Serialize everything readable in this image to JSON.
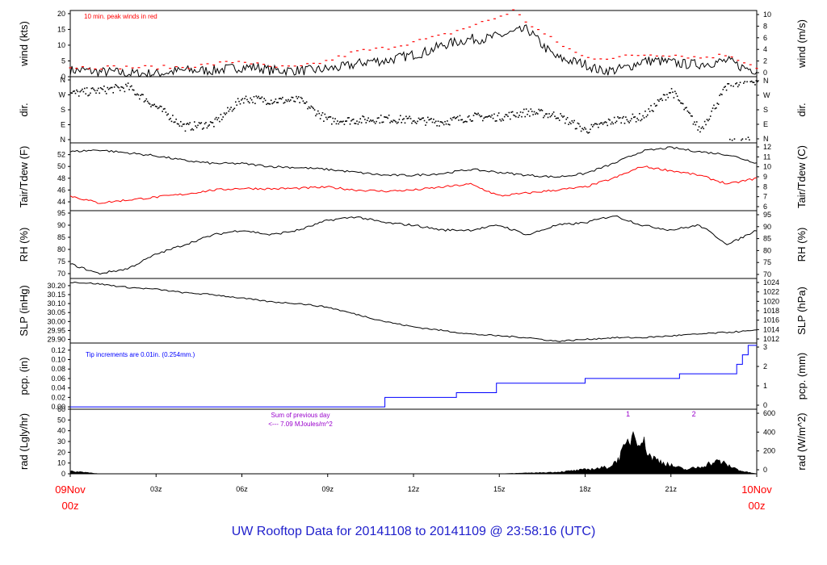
{
  "title": "UW Rooftop Data for 20141108  to  20141109 @ 23:58:16  (UTC)",
  "colors": {
    "trace": "#000000",
    "red": "#ff0000",
    "blue": "#0000ff",
    "purple": "#9900cc",
    "title": "#1f1fcc"
  },
  "chart_data": {
    "type": "line",
    "x_axis": {
      "ticks": [
        "03z",
        "06z",
        "09z",
        "12z",
        "15z",
        "18z",
        "21z"
      ],
      "start_day": "09Nov",
      "start_hour": "00z",
      "end_day": "10Nov",
      "end_hour": "00z"
    },
    "panels": [
      {
        "id": "wind",
        "ylabel_left": "wind (kts)",
        "ylabel_right": "wind (m/s)",
        "left_ticks": [
          "0",
          "5",
          "10",
          "15",
          "20"
        ],
        "ylim_left": [
          0,
          21
        ],
        "right_ticks": [
          "0",
          "2",
          "4",
          "6",
          "8",
          "10"
        ],
        "annotation": "10 min. peak winds in red",
        "series": [
          {
            "name": "wind speed",
            "x": [
              0,
              0.5,
              1,
              1.5,
              2,
              2.5,
              3,
              3.5,
              4,
              4.5,
              5,
              5.5,
              6,
              6.5,
              7,
              7.5,
              8,
              8.5,
              9,
              9.5,
              10,
              10.5,
              11,
              11.5,
              12,
              12.5,
              13,
              13.5,
              14,
              14.5,
              15,
              15.5,
              16,
              16.5,
              17,
              17.5,
              18,
              18.5,
              19,
              19.5,
              20,
              20.5,
              21,
              21.5,
              22,
              22.5,
              23,
              23.5,
              24
            ],
            "y": [
              2,
              2,
              1.5,
              1.5,
              1,
              1,
              1,
              1.5,
              2,
              2,
              2,
              2.5,
              3,
              3,
              2,
              2,
              2,
              2,
              2.5,
              3,
              4,
              5,
              5,
              6,
              7,
              8,
              10,
              11,
              12,
              12,
              13,
              14,
              15,
              10,
              6,
              5,
              4,
              2,
              2,
              3,
              5,
              5,
              4.5,
              4,
              4,
              4.5,
              5,
              3,
              2
            ]
          },
          {
            "name": "10 min. peak winds",
            "x": [
              0,
              1,
              2,
              3,
              4,
              5,
              6,
              7,
              8,
              9,
              10,
              11,
              12,
              13,
              14,
              15,
              15.5,
              16,
              17,
              18,
              19,
              20,
              21,
              22,
              23,
              24
            ],
            "y": [
              3,
              3,
              3,
              3,
              3,
              4,
              5,
              3,
              3,
              5,
              8,
              9,
              11,
              13,
              16,
              19,
              21,
              17,
              11,
              6,
              6,
              7,
              7,
              6,
              7,
              3
            ]
          }
        ]
      },
      {
        "id": "dir",
        "ylabel_left": "dir.",
        "ylabel_right": "dir.",
        "left_ticks": [
          "N",
          "E",
          "S",
          "W",
          "N"
        ],
        "right_ticks": [
          "N",
          "E",
          "S",
          "W",
          "N"
        ],
        "ylim": [
          0,
          360
        ],
        "series": [
          {
            "name": "wind direction",
            "x": [
              0,
              1,
              2,
              3,
              4,
              5,
              6,
              7,
              8,
              9,
              10,
              11,
              12,
              13,
              14,
              15,
              16,
              17,
              18,
              19,
              20,
              21,
              22,
              23,
              24
            ],
            "y": [
              280,
              300,
              320,
              200,
              80,
              100,
              250,
              240,
              240,
              120,
              120,
              130,
              120,
              110,
              140,
              140,
              170,
              150,
              60,
              120,
              140,
              300,
              60,
              340,
              360
            ]
          }
        ]
      },
      {
        "id": "temp",
        "ylabel_left": "Tair/Tdew (F)",
        "ylabel_right": "Tair/Tdew (C)",
        "left_ticks": [
          "44",
          "46",
          "48",
          "50",
          "52"
        ],
        "ylim_left": [
          42.5,
          54
        ],
        "right_ticks": [
          "6",
          "7",
          "8",
          "9",
          "10",
          "11",
          "12"
        ],
        "series": [
          {
            "name": "air temperature",
            "x": [
              0,
              1,
              2,
              3,
              4,
              5,
              6,
              7,
              8,
              9,
              10,
              11,
              12,
              13,
              14,
              15,
              16,
              17,
              18,
              19,
              20,
              21,
              22,
              23,
              24
            ],
            "y": [
              52.5,
              52.8,
              52.3,
              51.8,
              51,
              50.5,
              50.5,
              50,
              49.8,
              49.5,
              49,
              48.5,
              48.5,
              48.8,
              49.5,
              49,
              48.5,
              48.2,
              48.8,
              50.5,
              52.6,
              53.2,
              52.5,
              52,
              50.6
            ]
          },
          {
            "name": "dew point",
            "x": [
              0,
              1,
              2,
              3,
              4,
              5,
              6,
              7,
              8,
              9,
              10,
              11,
              12,
              13,
              14,
              15,
              16,
              17,
              18,
              19,
              20,
              21,
              22,
              23,
              24
            ],
            "y": [
              45,
              43.8,
              44.3,
              44.8,
              45.3,
              46,
              46.3,
              46.2,
              46.3,
              46.5,
              46,
              45.8,
              46,
              46.5,
              47,
              45,
              45.5,
              46,
              46.5,
              48,
              50,
              49.3,
              48.5,
              47,
              48
            ]
          }
        ]
      },
      {
        "id": "rh",
        "ylabel_left": "RH (%)",
        "ylabel_right": "RH (%)",
        "left_ticks": [
          "70",
          "75",
          "80",
          "85",
          "90",
          "95"
        ],
        "ylim": [
          68,
          96
        ],
        "right_ticks": [
          "70",
          "75",
          "80",
          "85",
          "90",
          "95"
        ],
        "series": [
          {
            "name": "relative humidity",
            "x": [
              0,
              1,
              2,
              3,
              4,
              5,
              6,
              7,
              8,
              9,
              10,
              11,
              12,
              13,
              14,
              15,
              16,
              17,
              18,
              19,
              20,
              21,
              22,
              23,
              24
            ],
            "y": [
              74,
              70,
              72,
              78,
              82,
              86,
              88,
              86,
              88,
              92,
              93.5,
              91,
              90,
              88,
              88,
              90,
              86,
              90,
              91,
              94,
              90,
              88,
              90,
              82,
              88
            ]
          }
        ]
      },
      {
        "id": "slp",
        "ylabel_left": "SLP (inHg)",
        "ylabel_right": "SLP (hPa)",
        "left_ticks": [
          "29.90",
          "29.95",
          "30.00",
          "30.05",
          "30.10",
          "30.15",
          "30.20"
        ],
        "ylim_left": [
          29.88,
          30.24
        ],
        "right_ticks": [
          "1012",
          "1014",
          "1016",
          "1018",
          "1020",
          "1022",
          "1024"
        ],
        "series": [
          {
            "name": "sea level pressure",
            "x": [
              0,
              1,
              2,
              3,
              4,
              5,
              6,
              7,
              8,
              9,
              10,
              11,
              12,
              13,
              14,
              15,
              16,
              17,
              18,
              19,
              20,
              21,
              22,
              23,
              24
            ],
            "y": [
              30.22,
              30.21,
              30.19,
              30.18,
              30.16,
              30.15,
              30.13,
              30.11,
              30.1,
              30.08,
              30.04,
              30.0,
              29.97,
              29.95,
              29.93,
              29.92,
              29.91,
              29.89,
              29.9,
              29.91,
              29.91,
              29.92,
              29.93,
              29.94,
              29.95
            ]
          }
        ]
      },
      {
        "id": "pcp",
        "ylabel_left": "pcp. (in)",
        "ylabel_right": "pcp. (mm)",
        "left_ticks": [
          "0.00",
          "0.02",
          "0.04",
          "0.06",
          "0.08",
          "0.10",
          "0.12"
        ],
        "ylim": [
          -0.005,
          0.135
        ],
        "right_ticks": [
          "0",
          "1",
          "2",
          "3"
        ],
        "annotation": "Tip increments are 0.01in. (0.254mm.)",
        "series": [
          {
            "name": "accumulated precipitation",
            "step": true,
            "x": [
              0,
              10.8,
              11.0,
              12.8,
              13.5,
              14.9,
              18.0,
              21.3,
              23.3,
              23.5,
              23.7,
              24
            ],
            "y": [
              0,
              0,
              0.02,
              0.02,
              0.03,
              0.05,
              0.06,
              0.07,
              0.09,
              0.11,
              0.13,
              0.13
            ]
          }
        ]
      },
      {
        "id": "rad",
        "ylabel_left": "rad (Lgly/hr)",
        "ylabel_right": "rad (W/m^2)",
        "left_ticks": [
          "0",
          "10",
          "20",
          "30",
          "40",
          "50",
          "60"
        ],
        "ylim": [
          0,
          60
        ],
        "right_ticks": [
          "0",
          "200",
          "400",
          "600"
        ],
        "annotation": "Sum of previous day",
        "annotation2": "<--- 7.09 MJoules/m^2",
        "markers": [
          "1",
          "2"
        ],
        "series": [
          {
            "name": "solar radiation",
            "x": [
              0,
              0.5,
              1,
              5,
              10,
              14,
              15,
              16,
              17,
              18,
              18.8,
              19,
              19.3,
              19.7,
              20,
              20.3,
              21,
              21.5,
              22,
              22.3,
              22.7,
              23,
              23.5,
              24
            ],
            "y": [
              3,
              2,
              0,
              0,
              0,
              0,
              0,
              1,
              2,
              5,
              8,
              12,
              25,
              50,
              40,
              20,
              10,
              5,
              8,
              12,
              15,
              10,
              3,
              0
            ]
          }
        ]
      }
    ]
  }
}
